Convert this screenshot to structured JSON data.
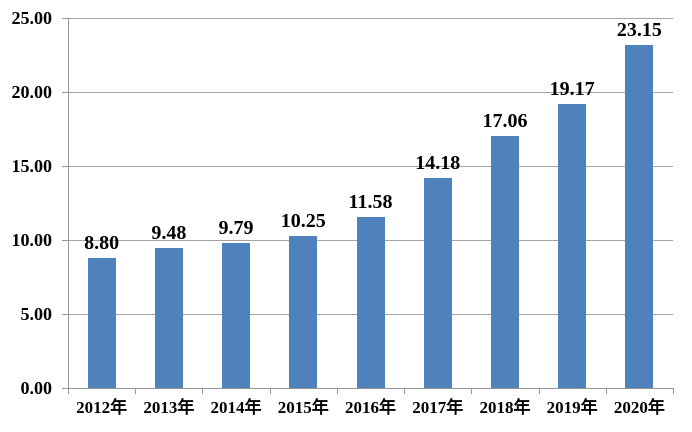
{
  "chart_data": {
    "type": "bar",
    "title": "",
    "xlabel": "",
    "ylabel": "",
    "categories": [
      "2012年",
      "2013年",
      "2014年",
      "2015年",
      "2016年",
      "2017年",
      "2018年",
      "2019年",
      "2020年"
    ],
    "values": [
      8.8,
      9.48,
      9.79,
      10.25,
      11.58,
      14.18,
      17.06,
      19.17,
      23.15
    ],
    "value_labels": [
      "8.80",
      "9.48",
      "9.79",
      "10.25",
      "11.58",
      "14.18",
      "17.06",
      "19.17",
      "23.15"
    ],
    "ylim": [
      0,
      25
    ],
    "ytick_interval": 5,
    "ytick_labels": [
      "0.00",
      "5.00",
      "10.00",
      "15.00",
      "20.00",
      "25.00"
    ],
    "grid": true,
    "legend": false,
    "colors": {
      "bar_fill": "#4F81BD",
      "gridline": "#a3a3a3",
      "axis": "#969696",
      "text": "#000000",
      "background": "#ffffff"
    }
  }
}
